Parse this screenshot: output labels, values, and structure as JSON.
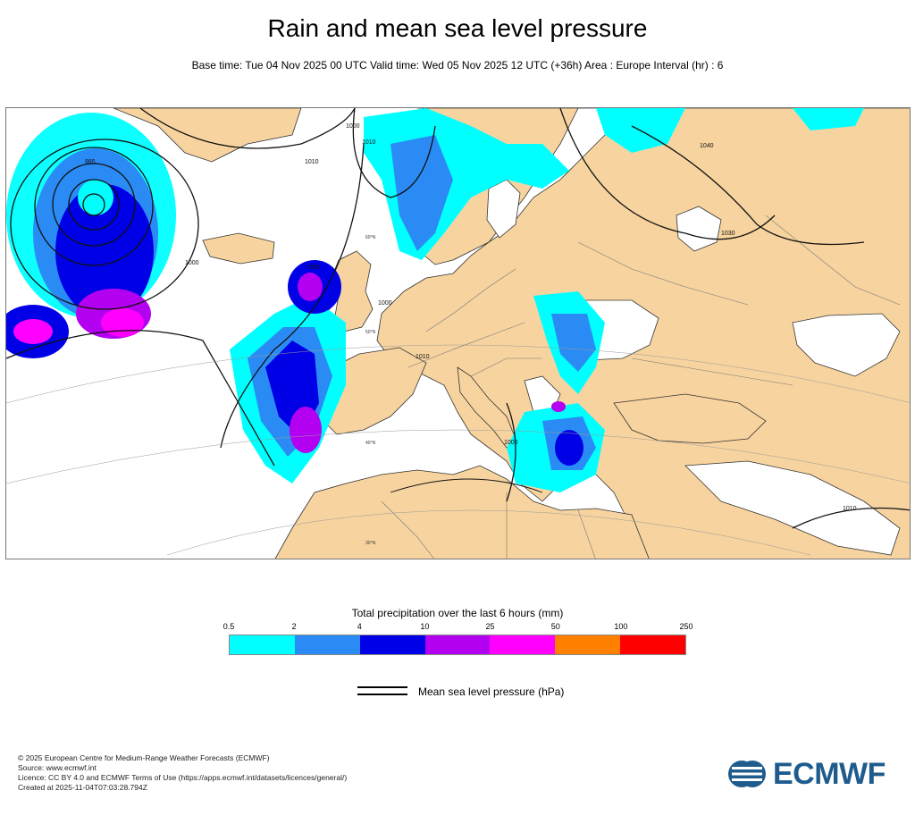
{
  "header": {
    "title": "Rain and mean sea level pressure",
    "subtitle": "Base time: Tue 04 Nov 2025 00 UTC Valid time: Wed 05 Nov 2025 12 UTC (+36h) Area : Europe Interval (hr) : 6"
  },
  "map": {
    "colors": {
      "land": "#f7d49f",
      "sea": "#ffffff",
      "isobar": "#111111",
      "border": "#555555"
    },
    "isobar_labels": [
      "985",
      "1000",
      "1010",
      "1000",
      "1010",
      "1000",
      "1000",
      "1010",
      "1000",
      "1040",
      "1030",
      "1010"
    ],
    "lat_labels": [
      "60°N",
      "50°N",
      "40°N",
      "30°N"
    ]
  },
  "legend": {
    "colorbar_title": "Total precipitation over the last 6 hours (mm)",
    "ticks": [
      "0.5",
      "2",
      "4",
      "10",
      "25",
      "50",
      "100",
      "250"
    ],
    "colors": [
      "#00ffff",
      "#2b8bf5",
      "#0000e6",
      "#b400f0",
      "#ff00ff",
      "#ff8000",
      "#ff0000"
    ],
    "isobar_label": "Mean sea level pressure (hPa)"
  },
  "footer": {
    "lines": [
      "© 2025 European Centre for Medium-Range Weather Forecasts (ECMWF)",
      "Source: www.ecmwf.int",
      "Licence: CC BY 4.0 and ECMWF Terms of Use (https://apps.ecmwf.int/datasets/licences/general/)",
      "Created at 2025-11-04T07:03:28.794Z"
    ],
    "logo_text": "ECMWF"
  }
}
